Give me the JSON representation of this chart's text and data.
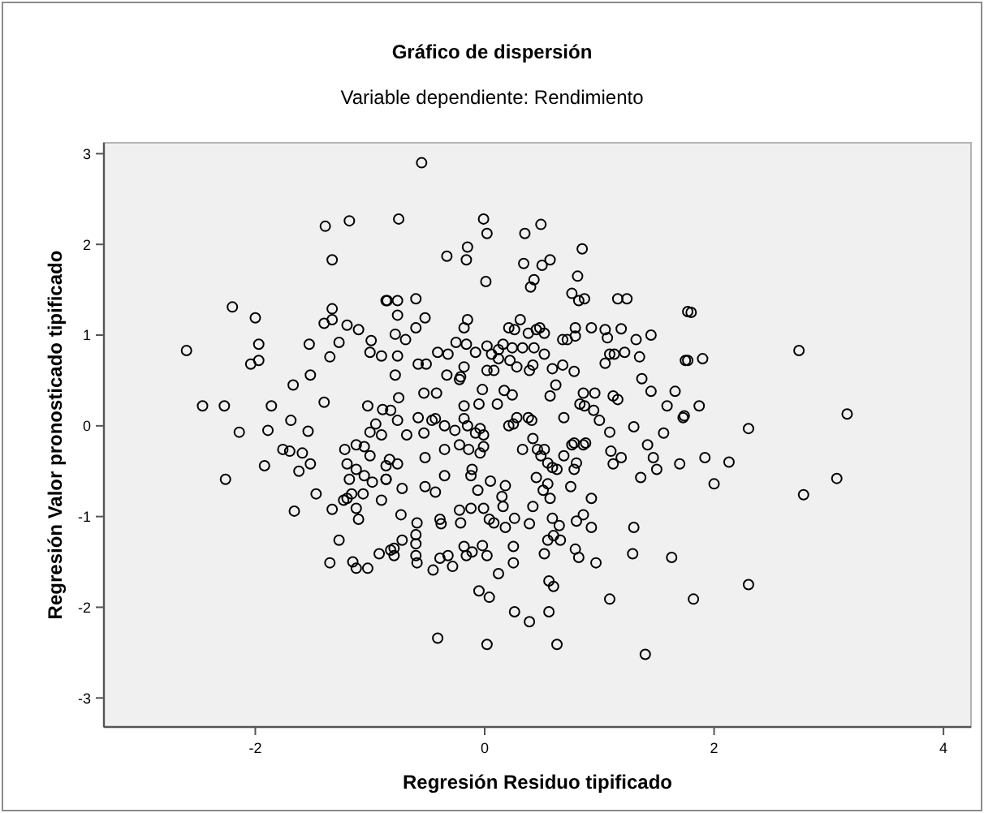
{
  "chart_data": {
    "type": "scatter",
    "title": "Gráfico de dispersión",
    "subtitle": "Variable dependiente: Rendimiento",
    "xlabel": "Regresión Residuo tipificado",
    "ylabel": "Regresión Valor pronosticado tipificado",
    "xlim": [
      -3.32,
      4.24
    ],
    "ylim": [
      -3.32,
      3.12
    ],
    "xticks": [
      -2,
      0,
      2,
      4
    ],
    "yticks": [
      -3,
      -2,
      -1,
      0,
      1,
      2,
      3
    ],
    "grid": false,
    "marker": "circle",
    "series": [
      {
        "color": "#000000",
        "x": [
          -0.55,
          -2.6,
          -1.39,
          -1.18,
          -1.33,
          -2.2,
          -2.0,
          -1.97,
          -2.04,
          -1.97,
          -2.46,
          -2.27,
          -2.14,
          -1.89,
          -1.86,
          -1.67,
          -1.69,
          -1.54,
          -1.52,
          -1.53,
          -1.35,
          -1.27,
          -1.33,
          -1.4,
          -1.33,
          -1.2,
          -1.1,
          -0.99,
          -1.0,
          -0.9,
          -0.86,
          -1.4,
          -1.02,
          -0.95,
          -1.0,
          -0.9,
          -0.89,
          -0.75,
          -0.01,
          0.02,
          0.49,
          0.35,
          -0.15,
          -0.16,
          -0.33,
          0.34,
          0.5,
          0.57,
          0.85,
          0.01,
          0.43,
          0.4,
          0.81,
          0.76,
          0.82,
          0.87,
          1.16,
          1.24,
          -0.6,
          -0.76,
          -0.85,
          1.77,
          1.75,
          1.66,
          1.59,
          1.73,
          1.45,
          1.32,
          1.35,
          1.19,
          1.05,
          1.07,
          1.22,
          1.13,
          1.09,
          1.05,
          1.37,
          1.45,
          1.12,
          1.16,
          0.96,
          0.86,
          0.83,
          0.87,
          0.95,
          1.0,
          1.09,
          1.3,
          1.56,
          0.69,
          0.62,
          0.57,
          0.24,
          0.17,
          0.11,
          -0.02,
          -0.05,
          -0.18,
          -0.42,
          -0.53,
          -0.75,
          -0.33,
          -0.22,
          -0.21,
          -0.78,
          -0.58,
          -0.51,
          -0.76,
          -0.41,
          -0.32,
          -0.18,
          -0.08,
          0.02,
          0.08,
          0.12,
          0.22,
          0.28,
          0.39,
          0.42,
          0.59,
          0.68,
          0.78,
          0.52,
          0.43,
          0.33,
          0.24,
          0.12,
          -0.25,
          -0.16,
          -0.6,
          -0.69,
          -0.78,
          -0.52,
          -0.76,
          -0.18,
          -0.15,
          0.21,
          0.31,
          0.26,
          0.38,
          0.45,
          0.52,
          0.48,
          0.68,
          0.72,
          0.79,
          0.79,
          0.93,
          0.02,
          0.16,
          0.06,
          -0.82,
          -0.76,
          -0.46,
          -0.43,
          -0.35,
          -0.26,
          -0.18,
          -0.15,
          -0.08,
          -0.01,
          -0.04,
          0.28,
          0.38,
          0.41,
          0.21,
          0.25,
          -0.58,
          -0.53,
          -0.68,
          0.42,
          0.78,
          0.88,
          1.8,
          1.77,
          1.9,
          2.74,
          1.87,
          1.74,
          2.3,
          3.16,
          1.92,
          2.13,
          2.0,
          1.7,
          2.78,
          3.07,
          2.3,
          1.82,
          -2.26,
          -1.92,
          -1.76,
          -1.7,
          -1.59,
          -1.52,
          -1.62,
          -1.47,
          -1.66,
          -1.33,
          -1.23,
          -1.2,
          -1.16,
          -1.12,
          -1.1,
          -1.06,
          -1.22,
          -1.12,
          -1.05,
          -1.0,
          -1.2,
          -1.18,
          -1.12,
          -1.05,
          -0.98,
          -0.86,
          -0.86,
          -0.9,
          -1.27,
          -1.35,
          -1.15,
          -1.12,
          -1.02,
          -0.92,
          -0.82,
          -0.41,
          0.02,
          0.63,
          1.4,
          -0.05,
          0.04,
          0.26,
          0.39,
          0.56,
          0.56,
          0.6,
          1.09,
          1.29,
          1.3,
          1.63,
          1.36,
          1.5,
          1.47,
          1.42,
          1.12,
          1.19,
          1.1,
          0.97,
          0.93,
          0.8,
          0.86,
          0.82,
          0.79,
          0.93,
          0.75,
          0.57,
          0.55,
          0.51,
          0.45,
          0.59,
          0.63,
          0.78,
          0.8,
          0.76,
          0.86,
          0.69,
          0.55,
          0.52,
          0.46,
          0.49,
          0.59,
          0.65,
          0.55,
          0.52,
          0.66,
          0.6,
          0.42,
          0.39,
          0.26,
          0.25,
          0.25,
          0.12,
          0.16,
          0.18,
          0.15,
          0.18,
          0.08,
          0.04,
          -0.01,
          0.05,
          -0.06,
          -0.12,
          -0.12,
          -0.11,
          -0.22,
          -0.21,
          -0.02,
          0.02,
          -0.11,
          -0.16,
          -0.18,
          -0.32,
          -0.39,
          -0.45,
          -0.28,
          -0.59,
          -0.6,
          -0.6,
          -0.6,
          -0.72,
          -0.79,
          -0.79,
          -0.39,
          -0.38,
          -0.59,
          -0.73,
          -0.86,
          -0.72,
          -0.52,
          -0.43,
          -0.35,
          -0.52,
          -0.76,
          -0.83,
          -0.35,
          -0.22,
          -0.14,
          -0.04,
          -0.01,
          0.33
        ],
        "values": [
          2.9,
          0.83,
          2.2,
          2.26,
          1.83,
          1.31,
          1.19,
          0.9,
          0.68,
          0.72,
          0.22,
          0.22,
          -0.07,
          -0.05,
          0.22,
          0.45,
          0.06,
          -0.06,
          0.56,
          0.9,
          0.76,
          0.92,
          1.29,
          1.13,
          1.17,
          1.11,
          1.06,
          0.94,
          0.81,
          0.77,
          1.38,
          0.26,
          0.22,
          0.02,
          -0.07,
          -0.1,
          0.18,
          2.28,
          2.28,
          2.12,
          2.22,
          2.12,
          1.97,
          1.83,
          1.87,
          1.79,
          1.77,
          1.83,
          1.95,
          1.59,
          1.61,
          1.53,
          1.65,
          1.46,
          1.38,
          1.4,
          1.4,
          1.4,
          1.4,
          1.38,
          1.38,
          1.26,
          0.72,
          0.38,
          0.22,
          0.09,
          1.0,
          0.95,
          0.76,
          1.07,
          1.06,
          0.97,
          0.81,
          0.79,
          0.79,
          0.69,
          0.52,
          0.38,
          0.33,
          0.29,
          0.36,
          0.36,
          0.24,
          0.22,
          0.17,
          0.06,
          -0.07,
          -0.01,
          -0.08,
          0.09,
          0.45,
          0.33,
          0.34,
          0.39,
          0.24,
          0.4,
          0.24,
          0.22,
          0.36,
          0.36,
          0.31,
          0.56,
          0.51,
          0.54,
          0.56,
          0.68,
          0.68,
          0.77,
          0.81,
          0.79,
          0.65,
          0.81,
          0.61,
          0.61,
          0.74,
          0.72,
          0.65,
          0.61,
          0.67,
          0.63,
          0.67,
          0.6,
          0.79,
          0.86,
          0.86,
          0.86,
          0.84,
          0.92,
          0.9,
          1.08,
          0.95,
          1.01,
          1.19,
          1.22,
          1.08,
          1.17,
          1.08,
          1.17,
          1.06,
          1.02,
          1.06,
          1.02,
          1.08,
          0.95,
          0.95,
          1.08,
          0.99,
          1.08,
          0.88,
          0.9,
          0.79,
          0.17,
          0.06,
          0.06,
          0.08,
          0.0,
          -0.05,
          0.08,
          0.0,
          -0.08,
          -0.1,
          -0.03,
          0.09,
          0.09,
          0.06,
          0.0,
          0.02,
          0.09,
          -0.08,
          -0.1,
          -0.14,
          -0.19,
          -0.19,
          1.25,
          0.72,
          0.74,
          0.83,
          0.22,
          0.11,
          -0.03,
          0.13,
          -0.35,
          -0.4,
          -0.64,
          -0.42,
          -0.76,
          -0.58,
          -1.75,
          -1.91,
          -0.59,
          -0.44,
          -0.26,
          -0.28,
          -0.3,
          -0.42,
          -0.5,
          -0.75,
          -0.94,
          -0.92,
          -0.82,
          -0.8,
          -0.75,
          -0.91,
          -1.03,
          -0.75,
          -0.26,
          -0.21,
          -0.23,
          -0.33,
          -0.42,
          -0.59,
          -0.48,
          -0.55,
          -0.62,
          -0.44,
          -0.59,
          -0.82,
          -1.26,
          -1.51,
          -1.5,
          -1.57,
          -1.57,
          -1.41,
          -1.37,
          -2.34,
          -2.41,
          -2.41,
          -2.52,
          -1.82,
          -1.89,
          -2.05,
          -2.16,
          -2.05,
          -1.71,
          -1.77,
          -1.91,
          -1.41,
          -1.12,
          -1.45,
          -0.57,
          -0.48,
          -0.35,
          -0.21,
          -0.42,
          -0.35,
          -0.28,
          -1.51,
          -1.12,
          -1.05,
          -0.98,
          -1.45,
          -1.36,
          -0.8,
          -0.67,
          -0.8,
          -0.64,
          -0.71,
          -0.57,
          -0.46,
          -0.48,
          -0.48,
          -0.41,
          -0.21,
          -0.21,
          -0.33,
          -0.41,
          -0.26,
          -0.26,
          -0.33,
          -1.02,
          -1.1,
          -1.26,
          -1.41,
          -1.26,
          -1.21,
          -0.89,
          -1.08,
          -1.02,
          -1.33,
          -1.51,
          -1.63,
          -0.89,
          -0.66,
          -0.78,
          -1.12,
          -1.07,
          -1.03,
          -0.91,
          -0.61,
          -0.71,
          -0.91,
          -0.55,
          -0.48,
          -0.93,
          -1.07,
          -1.32,
          -1.43,
          -1.39,
          -1.43,
          -1.33,
          -1.43,
          -1.46,
          -1.59,
          -1.55,
          -1.51,
          -1.43,
          -1.2,
          -1.3,
          -1.26,
          -1.35,
          -1.43,
          -1.03,
          -1.08,
          -1.07,
          -0.98,
          -0.59,
          -0.69,
          -0.67,
          -0.73,
          -0.55,
          -0.35,
          -0.42,
          -0.37,
          -0.26,
          -0.21,
          -0.26,
          -0.3,
          -0.23,
          -0.26
        ]
      }
    ]
  }
}
